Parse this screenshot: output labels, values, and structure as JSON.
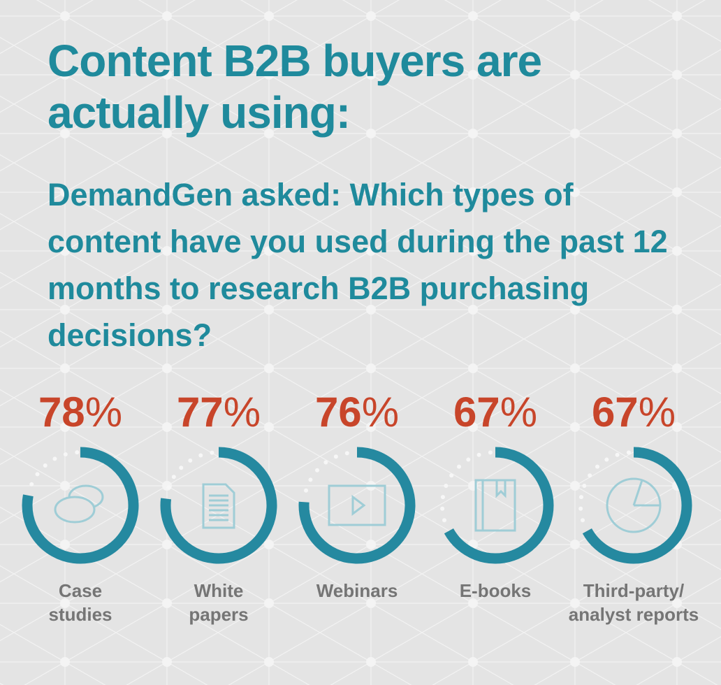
{
  "chart_data": {
    "type": "gauge",
    "title": "Content B2B buyers are actually using:",
    "subtitle": "DemandGen asked: Which types of content have you used during the past 12 months to research B2B purchasing decisions?",
    "categories": [
      "Case\nstudies",
      "White\npapers",
      "Webinars",
      "E-books",
      "Third-party/\nanalyst reports"
    ],
    "values": [
      78,
      77,
      76,
      67,
      67
    ],
    "value_labels": [
      "78%",
      "77%",
      "76%",
      "67%",
      "67%"
    ],
    "color": "#2589a0",
    "label_color": "#c8452a",
    "ylim": [
      0,
      100
    ]
  }
}
